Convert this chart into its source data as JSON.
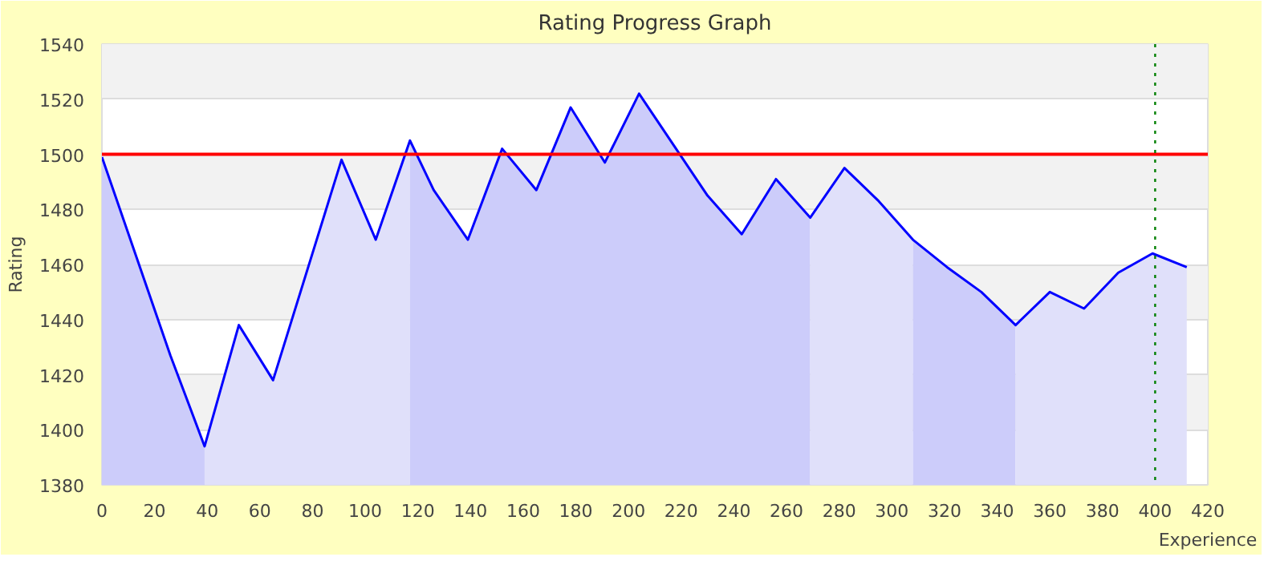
{
  "chart_data": {
    "type": "area",
    "title": "Rating Progress Graph",
    "xlabel": "Experience",
    "ylabel": "Rating",
    "series": [
      {
        "color": "#ccccfa",
        "x": [
          0,
          26,
          39
        ],
        "values": [
          1499,
          1427,
          1394
        ]
      },
      {
        "color": "#e0e0fa",
        "x": [
          39,
          52,
          65,
          91,
          104,
          117
        ],
        "values": [
          1394,
          1438,
          1418,
          1498,
          1469,
          1505
        ]
      },
      {
        "color": "#ccccfa",
        "x": [
          117,
          126,
          139,
          152,
          165,
          178,
          191,
          204,
          230,
          243,
          256,
          269
        ],
        "values": [
          1505,
          1487,
          1469,
          1502,
          1487,
          1517,
          1497,
          1522,
          1485,
          1471,
          1491,
          1477
        ]
      },
      {
        "color": "#e0e0fa",
        "x": [
          269,
          282,
          295,
          308
        ],
        "values": [
          1477,
          1495,
          1483,
          1469
        ]
      },
      {
        "color": "#ccccfa",
        "x": [
          308,
          321,
          334,
          347
        ],
        "values": [
          1469,
          1459,
          1450,
          1438
        ]
      },
      {
        "color": "#e0e0fa",
        "x": [
          347,
          360,
          373,
          386,
          399,
          412
        ],
        "values": [
          1438,
          1450,
          1444,
          1457,
          1464,
          1459
        ]
      },
      {
        "type": "line",
        "color": "#0000ff",
        "x": [
          0,
          26,
          39,
          52,
          65,
          91,
          104,
          117,
          126,
          139,
          152,
          165,
          178,
          191,
          204,
          230,
          243,
          256,
          269,
          282,
          295,
          308,
          321,
          334,
          347,
          360,
          373,
          386,
          399,
          412
        ],
        "values": [
          1499,
          1427,
          1394,
          1438,
          1418,
          1498,
          1469,
          1505,
          1487,
          1469,
          1502,
          1487,
          1517,
          1497,
          1522,
          1485,
          1471,
          1491,
          1477,
          1495,
          1483,
          1469,
          1459,
          1450,
          1438,
          1450,
          1444,
          1457,
          1464,
          1459
        ]
      }
    ],
    "xlim": [
      0,
      420
    ],
    "xticks": [
      0,
      20,
      40,
      60,
      80,
      100,
      120,
      140,
      160,
      180,
      200,
      220,
      240,
      260,
      280,
      300,
      320,
      340,
      360,
      380,
      400,
      420
    ],
    "ylim": [
      1380,
      1540
    ],
    "yticks": [
      1380,
      1400,
      1420,
      1440,
      1460,
      1480,
      1500,
      1520,
      1540
    ],
    "ref_lines": [
      {
        "axis": "y",
        "value": 1500,
        "color": "#ff0000",
        "line_style": "solid"
      },
      {
        "axis": "x",
        "value": 400,
        "color": "#008000",
        "line_style": "dotted"
      }
    ],
    "grid": "y"
  }
}
